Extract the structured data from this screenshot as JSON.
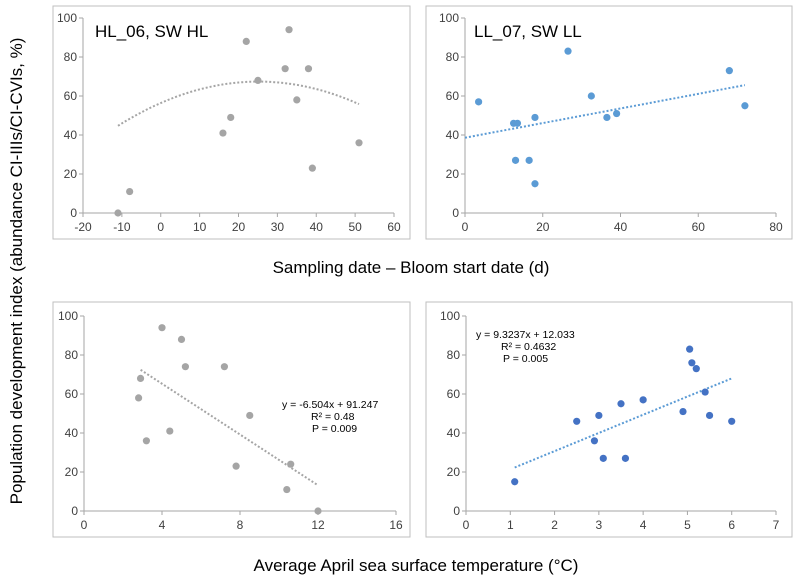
{
  "figure": {
    "ylabel": "Population development index (abundance CI-IIIs/CI-CVIs, %)",
    "xlabel_top": "Sampling date – Bloom start date (d)",
    "xlabel_bottom": "Average April sea surface temperature (°C)"
  },
  "colors": {
    "grey": "#a5a5a5",
    "blue": "#5b9bd5",
    "darkblue": "#4472c4"
  },
  "chart_data": [
    {
      "type": "scatter",
      "title": "HL_06, SW HL",
      "xlim": [
        -20,
        60
      ],
      "ylim": [
        0,
        100
      ],
      "xticks": [
        "-20",
        "-10",
        "0",
        "10",
        "20",
        "30",
        "40",
        "50",
        "60"
      ],
      "yticks": [
        "0",
        "20",
        "40",
        "60",
        "80",
        "100"
      ],
      "x": [
        -11,
        -8,
        16,
        18,
        22,
        25,
        32,
        33,
        35,
        38,
        39,
        51
      ],
      "y": [
        0,
        11,
        41,
        49,
        88,
        68,
        74,
        94,
        58,
        74,
        23,
        36
      ],
      "trendline": {
        "kind": "polynomial",
        "coeffs": [
          56.4,
          0.873,
          -0.01734
        ],
        "xrange": [
          -11,
          51
        ]
      },
      "color": "grey",
      "trend_color": "grey",
      "annotations": []
    },
    {
      "type": "scatter",
      "title": "LL_07, SW LL",
      "xlim": [
        0,
        80
      ],
      "ylim": [
        0,
        100
      ],
      "xticks": [
        "0",
        "20",
        "40",
        "60",
        "80"
      ],
      "yticks": [
        "0",
        "20",
        "40",
        "60",
        "80",
        "100"
      ],
      "x": [
        3.5,
        12.5,
        13.5,
        13,
        16.5,
        18,
        18,
        26.5,
        32.5,
        36.5,
        39,
        68,
        72
      ],
      "y": [
        57,
        46,
        46,
        27,
        27,
        15,
        49,
        83,
        60,
        49,
        51,
        73,
        55
      ],
      "trendline": {
        "kind": "linear",
        "coeffs": [
          38.6,
          0.375
        ],
        "xrange": [
          0,
          72
        ]
      },
      "color": "blue",
      "trend_color": "blue",
      "annotations": []
    },
    {
      "type": "scatter",
      "title": "",
      "xlim": [
        0,
        16
      ],
      "ylim": [
        0,
        100
      ],
      "xticks": [
        "0",
        "4",
        "8",
        "12",
        "16"
      ],
      "yticks": [
        "0",
        "20",
        "40",
        "60",
        "80",
        "100"
      ],
      "x": [
        2.8,
        2.9,
        3.2,
        4.0,
        4.4,
        5.0,
        5.2,
        7.2,
        7.8,
        8.5,
        10.4,
        10.6,
        12.0
      ],
      "y": [
        58,
        68,
        36,
        94,
        41,
        88,
        74,
        74,
        23,
        49,
        11,
        24,
        0
      ],
      "trendline": {
        "kind": "linear",
        "coeffs": [
          91.247,
          -6.504
        ],
        "xrange": [
          2.9,
          12
        ]
      },
      "color": "grey",
      "trend_color": "grey",
      "annotations": [
        "y = -6.504x + 91.247",
        "R² = 0.48",
        "P = 0.009"
      ]
    },
    {
      "type": "scatter",
      "title": "",
      "xlim": [
        0,
        7
      ],
      "ylim": [
        0,
        100
      ],
      "xticks": [
        "0",
        "1",
        "2",
        "3",
        "4",
        "5",
        "6",
        "7"
      ],
      "yticks": [
        "0",
        "20",
        "40",
        "60",
        "80",
        "100"
      ],
      "x": [
        1.1,
        2.5,
        2.9,
        3.0,
        3.1,
        3.5,
        3.6,
        4.0,
        4.9,
        5.05,
        5.1,
        5.2,
        5.4,
        5.5,
        6.0
      ],
      "y": [
        15,
        46,
        36,
        49,
        27,
        55,
        27,
        57,
        51,
        83,
        76,
        73,
        61,
        49,
        46
      ],
      "trendline": {
        "kind": "linear",
        "coeffs": [
          12.033,
          9.3237
        ],
        "xrange": [
          1.1,
          6.0
        ]
      },
      "color": "darkblue",
      "trend_color": "blue",
      "annotations": [
        "y = 9.3237x + 12.033",
        "R² = 0.4632",
        "P = 0.005"
      ]
    }
  ]
}
